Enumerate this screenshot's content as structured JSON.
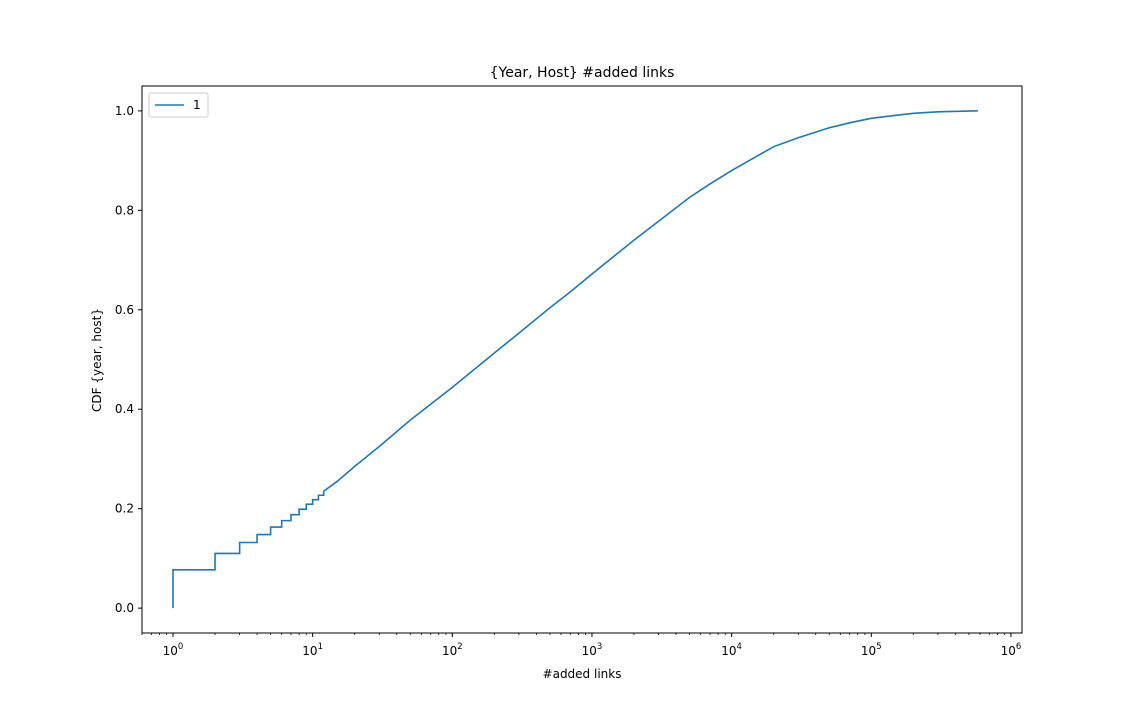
{
  "chart_data": {
    "type": "line",
    "title": "{Year, Host} #added links",
    "xlabel": "#added links",
    "ylabel": "CDF {year, host}",
    "x_scale": "log",
    "xlim": [
      0.6,
      1200000
    ],
    "ylim": [
      -0.05,
      1.05
    ],
    "x_ticks": [
      {
        "value": 1,
        "base": "10",
        "exp": "0"
      },
      {
        "value": 10,
        "base": "10",
        "exp": "1"
      },
      {
        "value": 100,
        "base": "10",
        "exp": "2"
      },
      {
        "value": 1000,
        "base": "10",
        "exp": "3"
      },
      {
        "value": 10000,
        "base": "10",
        "exp": "4"
      },
      {
        "value": 100000,
        "base": "10",
        "exp": "5"
      },
      {
        "value": 1000000,
        "base": "10",
        "exp": "6"
      }
    ],
    "y_ticks": [
      {
        "value": 0.0,
        "label": "0.0"
      },
      {
        "value": 0.2,
        "label": "0.2"
      },
      {
        "value": 0.4,
        "label": "0.4"
      },
      {
        "value": 0.6,
        "label": "0.6"
      },
      {
        "value": 0.8,
        "label": "0.8"
      },
      {
        "value": 1.0,
        "label": "1.0"
      }
    ],
    "grid": false,
    "legend": "top-left",
    "series": [
      {
        "name": "1",
        "color": "#1f77b4",
        "step_points": [
          [
            1,
            0.0
          ],
          [
            1,
            0.077
          ],
          [
            2,
            0.077
          ],
          [
            2,
            0.11
          ],
          [
            3,
            0.11
          ],
          [
            3,
            0.132
          ],
          [
            4,
            0.132
          ],
          [
            4,
            0.148
          ],
          [
            5,
            0.148
          ],
          [
            5,
            0.163
          ],
          [
            6,
            0.163
          ],
          [
            6,
            0.176
          ],
          [
            7,
            0.176
          ],
          [
            7,
            0.188
          ],
          [
            8,
            0.188
          ],
          [
            8,
            0.199
          ],
          [
            9,
            0.199
          ],
          [
            9,
            0.209
          ],
          [
            10,
            0.209
          ],
          [
            10,
            0.218
          ],
          [
            11,
            0.218
          ],
          [
            11,
            0.227
          ],
          [
            12,
            0.227
          ],
          [
            12,
            0.235
          ]
        ],
        "line_points": [
          [
            12,
            0.235
          ],
          [
            15,
            0.255
          ],
          [
            20,
            0.285
          ],
          [
            30,
            0.325
          ],
          [
            40,
            0.355
          ],
          [
            50,
            0.378
          ],
          [
            70,
            0.41
          ],
          [
            100,
            0.444
          ],
          [
            200,
            0.513
          ],
          [
            300,
            0.553
          ],
          [
            500,
            0.604
          ],
          [
            700,
            0.636
          ],
          [
            1000,
            0.672
          ],
          [
            2000,
            0.74
          ],
          [
            3000,
            0.778
          ],
          [
            5000,
            0.826
          ],
          [
            7000,
            0.853
          ],
          [
            10000,
            0.88
          ],
          [
            20000,
            0.928
          ],
          [
            30000,
            0.946
          ],
          [
            50000,
            0.966
          ],
          [
            70000,
            0.976
          ],
          [
            100000,
            0.985
          ],
          [
            150000,
            0.991
          ],
          [
            200000,
            0.995
          ],
          [
            300000,
            0.998
          ],
          [
            580000,
            1.0
          ]
        ]
      }
    ]
  }
}
